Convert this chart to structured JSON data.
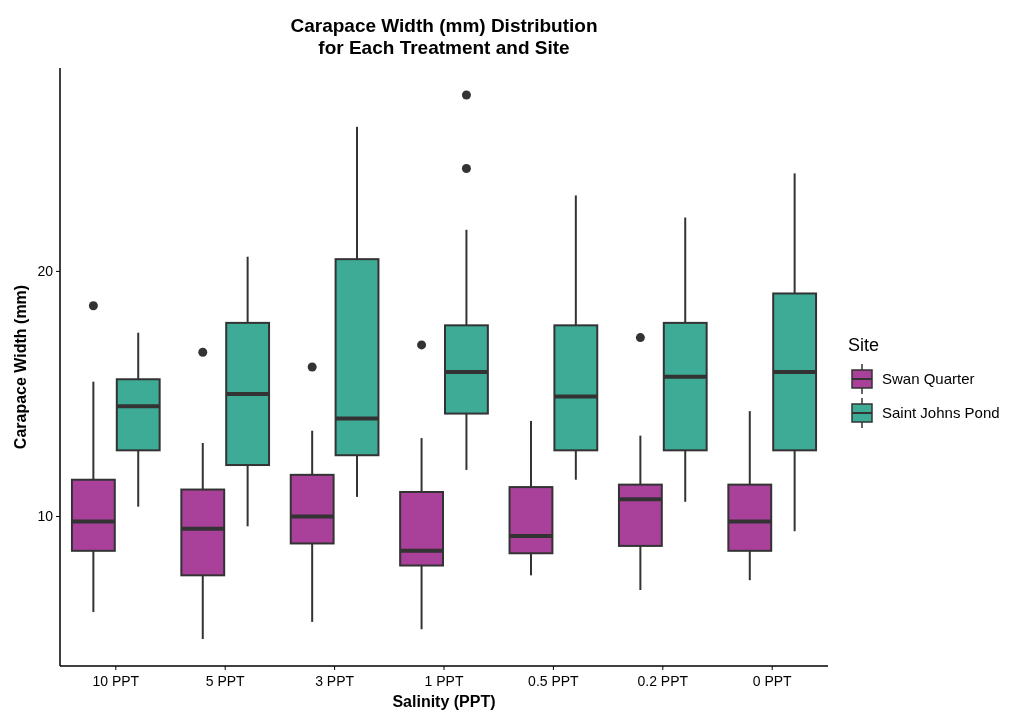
{
  "chart_data": {
    "type": "box",
    "title": "Carapace Width (mm) Distribution\nfor Each Treatment and Site",
    "xlabel": "Salinity (PPT)",
    "ylabel": "Carapace Width (mm)",
    "legend_title": "Site",
    "categories": [
      "10 PPT",
      "5 PPT",
      "3 PPT",
      "1 PPT",
      "0.5 PPT",
      "0.2 PPT",
      "0 PPT"
    ],
    "ylim": [
      3.9,
      28.3
    ],
    "yticks": [
      10,
      20
    ],
    "grid": false,
    "legend": "right",
    "series": [
      {
        "name": "Swan Quarter",
        "color": "#a9419a",
        "boxes": [
          {
            "low": 6.1,
            "q1": 8.6,
            "median": 9.8,
            "q3": 11.5,
            "high": 15.5,
            "outliers": [
              18.6
            ]
          },
          {
            "low": 5.0,
            "q1": 7.6,
            "median": 9.5,
            "q3": 11.1,
            "high": 13.0,
            "outliers": [
              16.7
            ]
          },
          {
            "low": 5.7,
            "q1": 8.9,
            "median": 10.0,
            "q3": 11.7,
            "high": 13.5,
            "outliers": [
              16.1
            ]
          },
          {
            "low": 5.4,
            "q1": 8.0,
            "median": 8.6,
            "q3": 11.0,
            "high": 13.2,
            "outliers": [
              17.0
            ]
          },
          {
            "low": 7.6,
            "q1": 8.5,
            "median": 9.2,
            "q3": 11.2,
            "high": 13.9
          },
          {
            "low": 7.0,
            "q1": 8.8,
            "median": 10.7,
            "q3": 11.3,
            "high": 13.3,
            "outliers": [
              17.3
            ]
          },
          {
            "low": 7.4,
            "q1": 8.6,
            "median": 9.8,
            "q3": 11.3,
            "high": 14.3
          }
        ]
      },
      {
        "name": "Saint Johns Pond",
        "color": "#3eab97",
        "boxes": [
          {
            "low": 10.4,
            "q1": 12.7,
            "median": 14.5,
            "q3": 15.6,
            "high": 17.5
          },
          {
            "low": 9.6,
            "q1": 12.1,
            "median": 15.0,
            "q3": 17.9,
            "high": 20.6
          },
          {
            "low": 10.8,
            "q1": 12.5,
            "median": 14.0,
            "q3": 20.5,
            "high": 25.9
          },
          {
            "low": 11.9,
            "q1": 14.2,
            "median": 15.9,
            "q3": 17.8,
            "high": 21.7,
            "outliers": [
              24.2,
              27.2
            ]
          },
          {
            "low": 11.5,
            "q1": 12.7,
            "median": 14.9,
            "q3": 17.8,
            "high": 23.1
          },
          {
            "low": 10.6,
            "q1": 12.7,
            "median": 15.7,
            "q3": 17.9,
            "high": 22.2
          },
          {
            "low": 9.4,
            "q1": 12.7,
            "median": 15.9,
            "q3": 19.1,
            "high": 24.0
          }
        ]
      }
    ]
  }
}
